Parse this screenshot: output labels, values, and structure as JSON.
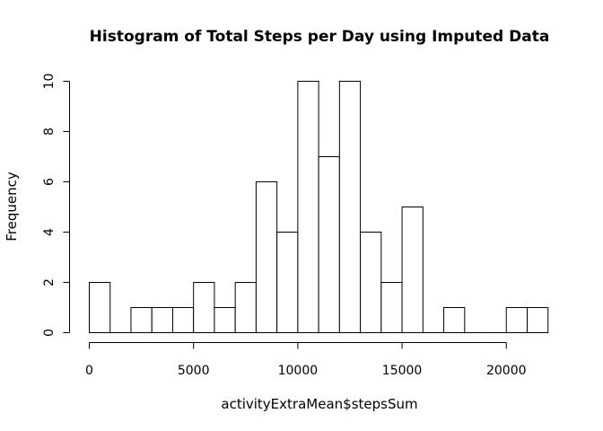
{
  "chart_data": {
    "type": "bar",
    "title": "Histogram of Total Steps per Day using Imputed Data",
    "xlabel": "activityExtraMean$stepsSum",
    "ylabel": "Frequency",
    "bin_width": 1000,
    "bins": [
      {
        "start": 0,
        "end": 1000,
        "count": 2
      },
      {
        "start": 1000,
        "end": 2000,
        "count": 0
      },
      {
        "start": 2000,
        "end": 3000,
        "count": 1
      },
      {
        "start": 3000,
        "end": 4000,
        "count": 1
      },
      {
        "start": 4000,
        "end": 5000,
        "count": 1
      },
      {
        "start": 5000,
        "end": 6000,
        "count": 2
      },
      {
        "start": 6000,
        "end": 7000,
        "count": 1
      },
      {
        "start": 7000,
        "end": 8000,
        "count": 2
      },
      {
        "start": 8000,
        "end": 9000,
        "count": 6
      },
      {
        "start": 9000,
        "end": 10000,
        "count": 4
      },
      {
        "start": 10000,
        "end": 11000,
        "count": 10
      },
      {
        "start": 11000,
        "end": 12000,
        "count": 7
      },
      {
        "start": 12000,
        "end": 13000,
        "count": 10
      },
      {
        "start": 13000,
        "end": 14000,
        "count": 4
      },
      {
        "start": 14000,
        "end": 15000,
        "count": 2
      },
      {
        "start": 15000,
        "end": 16000,
        "count": 5
      },
      {
        "start": 16000,
        "end": 17000,
        "count": 0
      },
      {
        "start": 17000,
        "end": 18000,
        "count": 1
      },
      {
        "start": 18000,
        "end": 19000,
        "count": 0
      },
      {
        "start": 19000,
        "end": 20000,
        "count": 0
      },
      {
        "start": 20000,
        "end": 21000,
        "count": 1
      },
      {
        "start": 21000,
        "end": 22000,
        "count": 1
      }
    ],
    "x_ticks": [
      {
        "value": 0,
        "label": "0"
      },
      {
        "value": 5000,
        "label": "5000"
      },
      {
        "value": 10000,
        "label": "10000"
      },
      {
        "value": 15000,
        "label": "15000"
      },
      {
        "value": 20000,
        "label": "20000"
      }
    ],
    "y_ticks": [
      {
        "value": 0,
        "label": "0"
      },
      {
        "value": 2,
        "label": "2"
      },
      {
        "value": 4,
        "label": "4"
      },
      {
        "value": 6,
        "label": "6"
      },
      {
        "value": 8,
        "label": "8"
      },
      {
        "value": 10,
        "label": "10"
      }
    ],
    "xlim": [
      0,
      22000
    ],
    "ylim": [
      0,
      10
    ],
    "grid": false,
    "bar_fill": "#ffffff",
    "bar_stroke": "#000000"
  }
}
